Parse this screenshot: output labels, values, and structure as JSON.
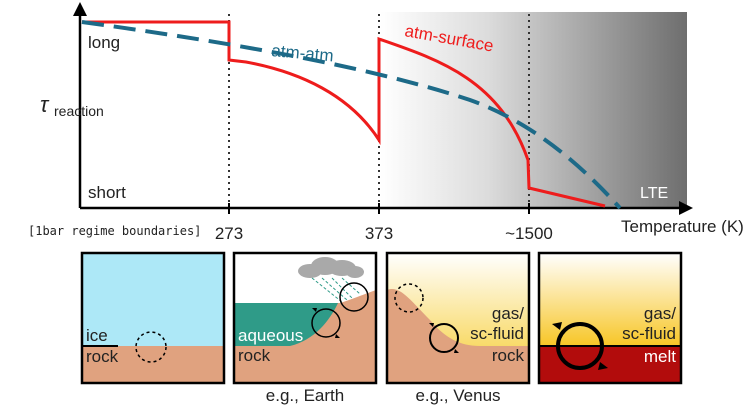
{
  "chart": {
    "y_axis_label": "τ",
    "y_axis_subscript": "reaction",
    "y_long": "long",
    "y_short": "short",
    "x_axis_label": "Temperature (K)",
    "boundaries_note": "[1bar regime boundaries]",
    "ticks": [
      "273",
      "373",
      "~1500"
    ],
    "curve_atm_atm": "atm-atm",
    "curve_atm_surface": "atm-surface",
    "lte_label": "LTE"
  },
  "colors": {
    "atm_atm": "#1d6a88",
    "atm_surface": "#ee1c1c",
    "sky_blue": "#ade8f7",
    "rock": "#e0a27f",
    "ocean": "#2f9b88",
    "yellow": "#f7d23b",
    "melt": "#b20c0c"
  },
  "panels": [
    {
      "top_label": "ice",
      "bottom_label": "rock",
      "caption": ""
    },
    {
      "top_label": "aqueous",
      "bottom_label": "rock",
      "caption": "e.g., Earth"
    },
    {
      "top_label": "gas/",
      "top_label_2": "sc-fluid",
      "bottom_label": "rock",
      "caption": "e.g., Venus"
    },
    {
      "top_label": "gas/",
      "top_label_2": "sc-fluid",
      "bottom_label": "melt",
      "caption": ""
    }
  ]
}
